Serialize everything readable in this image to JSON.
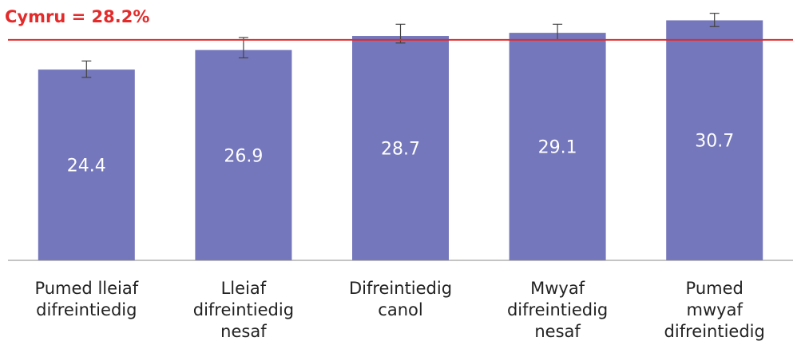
{
  "chart_data": {
    "type": "bar",
    "categories": [
      [
        "Pumed lleiaf",
        "difreintiedig"
      ],
      [
        "Lleiaf",
        "difreintiedig",
        "nesaf"
      ],
      [
        "Difreintiedig",
        "canol"
      ],
      [
        "Mwyaf",
        "difreintiedig",
        "nesaf"
      ],
      [
        "Pumed",
        "mwyaf",
        "difreintiedig"
      ]
    ],
    "values": [
      24.4,
      26.9,
      28.7,
      29.1,
      30.7
    ],
    "error": [
      [
        23.4,
        25.5
      ],
      [
        25.9,
        28.5
      ],
      [
        27.8,
        30.2
      ],
      [
        28.2,
        30.2
      ],
      [
        29.9,
        31.6
      ]
    ],
    "ylim": [
      0,
      33.3
    ],
    "reference_line": {
      "value": 28.2,
      "label": "Cymru = 28.2%"
    },
    "grid": false,
    "legend": "none",
    "colors": {
      "bar": "#7477bb",
      "reference": "#e32b2b",
      "axis": "#888888",
      "value_label": "#ffffff",
      "tick_label": "#222222",
      "error_bar": "#444444"
    }
  }
}
